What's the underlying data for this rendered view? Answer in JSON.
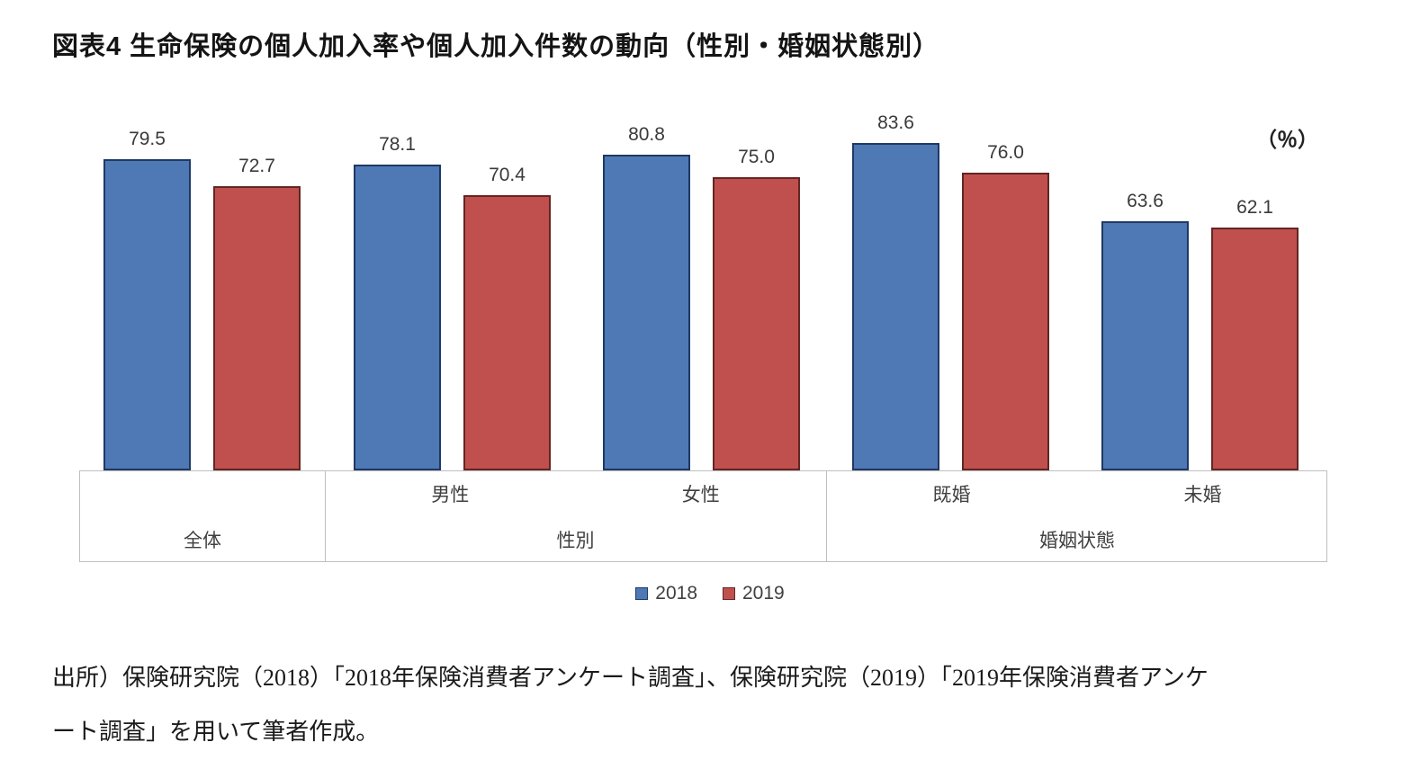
{
  "title": "図表4 生命保険の個人加入率や個人加入件数の動向（性別・婚姻状態別）",
  "chart_data": {
    "type": "bar",
    "title": "図表4 生命保険の個人加入率や個人加入件数の動向（性別・婚姻状態別）",
    "unit_label": "（％）",
    "categories": [
      "全体",
      "男性",
      "女性",
      "既婚",
      "未婚"
    ],
    "axis_groups": [
      {
        "label": "全体",
        "items": []
      },
      {
        "label": "性別",
        "items": [
          "男性",
          "女性"
        ]
      },
      {
        "label": "婚姻状態",
        "items": [
          "既婚",
          "未婚"
        ]
      }
    ],
    "series": [
      {
        "name": "2018",
        "color": "#4e79b5",
        "border": "#1f3864",
        "values": [
          79.5,
          78.1,
          80.8,
          83.6,
          63.6
        ]
      },
      {
        "name": "2019",
        "color": "#c0504d",
        "border": "#632523",
        "values": [
          72.7,
          70.4,
          75.0,
          76.0,
          62.1
        ]
      }
    ],
    "ylim": [
      0,
      100
    ],
    "grid": false,
    "legend_position": "bottom",
    "value_labels": true
  },
  "source": {
    "line1": "出所）保険研究院（2018）「2018年保険消費者アンケート調査」、保険研究院（2019）「2019年保険消費者アンケ",
    "line2": "ート調査」を用いて筆者作成。"
  }
}
